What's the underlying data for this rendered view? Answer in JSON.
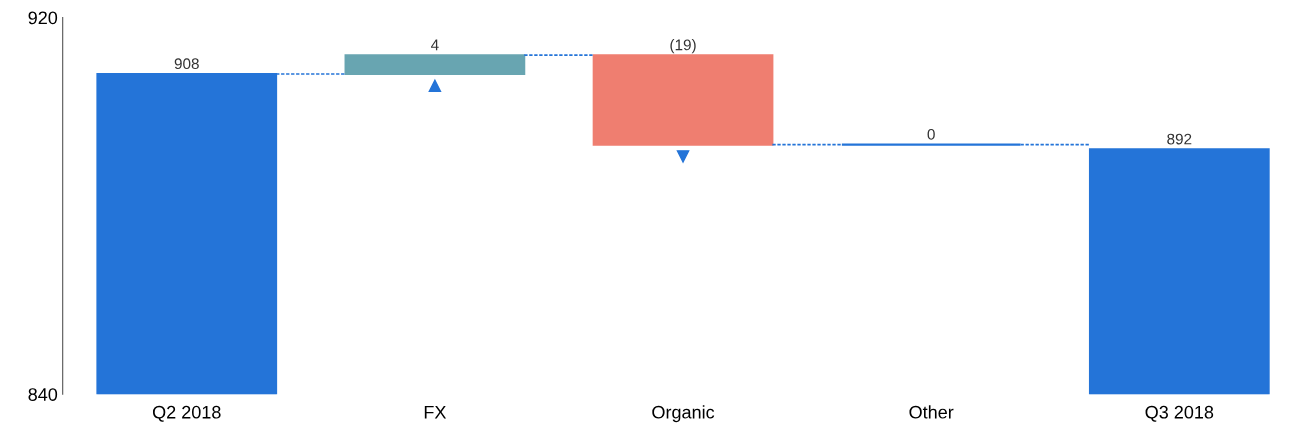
{
  "chart_data": {
    "type": "bar",
    "categories": [
      "Q2 2018",
      "FX",
      "Organic",
      "Other",
      "Q3 2018"
    ],
    "base": [
      840,
      908,
      912,
      893,
      840
    ],
    "values": [
      68,
      4,
      -19,
      0,
      52
    ],
    "colors": [
      "#2474d8",
      "#68a5b1",
      "#ef7e70",
      "#2474d8",
      "#2474d8"
    ],
    "value_labels": [
      "908",
      "4",
      "(19)",
      "0",
      "892"
    ],
    "ylim": [
      840,
      920
    ],
    "yticks": [
      840,
      920
    ],
    "grid": false,
    "legend": false
  }
}
